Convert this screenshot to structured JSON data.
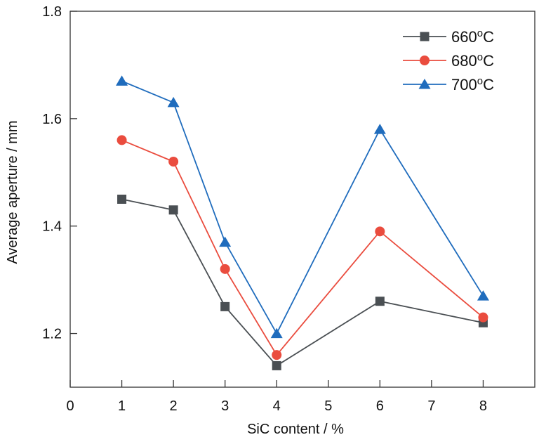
{
  "chart_data": {
    "type": "line",
    "title": "",
    "xlabel": "SiC content / %",
    "ylabel": "Average aperture / mm",
    "xlim": [
      0,
      9
    ],
    "ylim": [
      1.1,
      1.8
    ],
    "xticks": [
      0,
      1,
      2,
      3,
      4,
      5,
      6,
      7,
      8
    ],
    "xtick_labels": [
      "0",
      "1",
      "2",
      "3",
      "4",
      "5",
      "6",
      "7",
      "8"
    ],
    "yticks": [
      1.2,
      1.4,
      1.6,
      1.8
    ],
    "ytick_labels": [
      "1.2",
      "1.4",
      "1.6",
      "1.8"
    ],
    "grid": false,
    "legend_position": "top-right",
    "x": [
      1,
      2,
      3,
      4,
      6,
      8
    ],
    "series": [
      {
        "name": "660",
        "suffix": "oC",
        "label": "660oC",
        "marker": "square",
        "color": "#4a4f53",
        "values": [
          1.45,
          1.43,
          1.25,
          1.14,
          1.26,
          1.22
        ]
      },
      {
        "name": "680",
        "suffix": "oC",
        "label": "680oC",
        "marker": "circle",
        "color": "#ea4c3e",
        "values": [
          1.56,
          1.52,
          1.32,
          1.16,
          1.39,
          1.23
        ]
      },
      {
        "name": "700",
        "suffix": "oC",
        "label": "700oC",
        "marker": "triangle",
        "color": "#1f6cbd",
        "values": [
          1.67,
          1.63,
          1.37,
          1.2,
          1.58,
          1.27
        ]
      }
    ]
  }
}
